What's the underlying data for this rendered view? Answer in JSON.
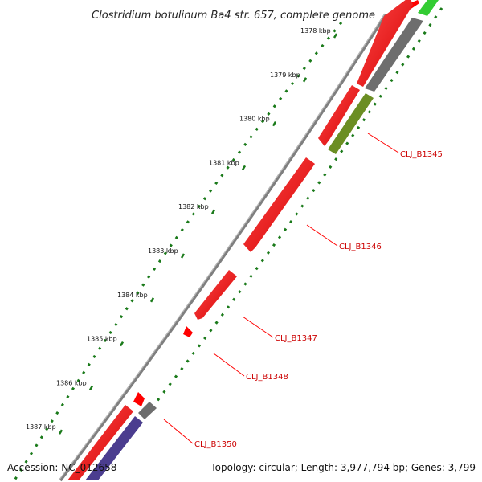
{
  "title": "Clostridium botulinum Ba4 str. 657, complete genome",
  "footer": {
    "accession": "Accession: NC_012658",
    "summary": "Topology: circular; Length: 3,977,794 bp; Genes: 3,799"
  },
  "ticks": [
    "1378 kbp",
    "1379 kbp",
    "1380 kbp",
    "1381 kbp",
    "1382 kbp",
    "1383 kbp",
    "1384 kbp",
    "1385 kbp",
    "1386 kbp",
    "1387 kbp"
  ],
  "genes": [
    {
      "label": "CLJ_B1345"
    },
    {
      "label": "CLJ_B1346"
    },
    {
      "label": "CLJ_B1347"
    },
    {
      "label": "CLJ_B1348"
    },
    {
      "label": "CLJ_B1350"
    }
  ],
  "colors": {
    "forward_cds": "#ff0000",
    "reverse_cds": "#ff0000",
    "backbone": "#8c8c8c",
    "label_line": "#ff0000",
    "label_text": "#cc0000",
    "tick_mark": "#1a7a1a",
    "rna": "#6e6e6e",
    "highlight_green": "#6b8e23",
    "bright_green": "#33cc33",
    "purple": "#4b3d8f"
  }
}
